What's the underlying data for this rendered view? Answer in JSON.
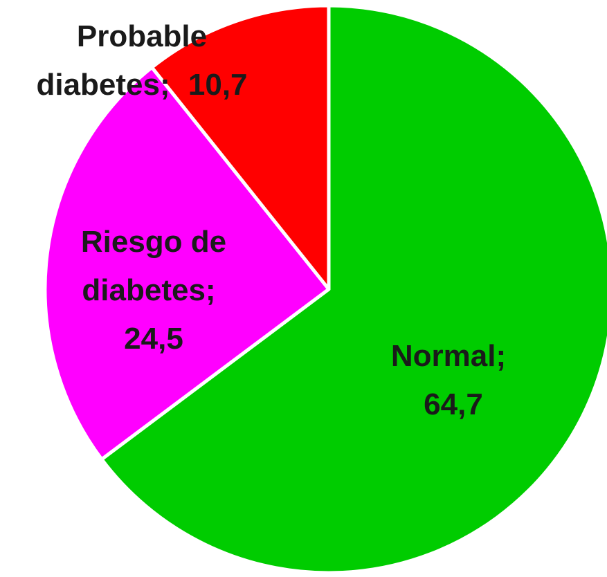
{
  "chart_data": {
    "type": "pie",
    "categories": [
      "Normal",
      "Riesgo de diabetes",
      "Probable diabetes"
    ],
    "values": [
      64.7,
      24.5,
      10.7
    ],
    "value_labels": [
      "64,7",
      "24,5",
      "10,7"
    ],
    "label_separator": ";",
    "colors": [
      "#00cc00",
      "#ff00ff",
      "#ff0000"
    ]
  }
}
